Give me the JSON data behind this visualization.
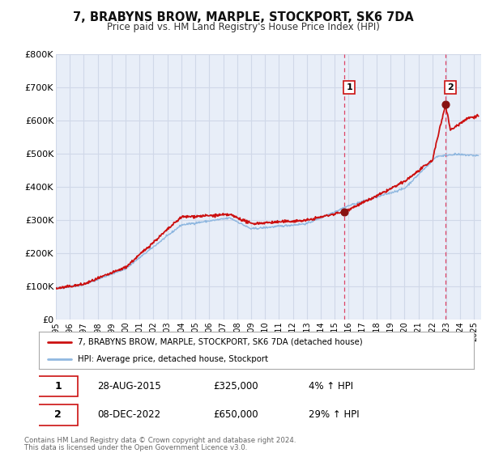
{
  "title": "7, BRABYNS BROW, MARPLE, STOCKPORT, SK6 7DA",
  "subtitle": "Price paid vs. HM Land Registry's House Price Index (HPI)",
  "ylim": [
    0,
    800000
  ],
  "yticks": [
    0,
    100000,
    200000,
    300000,
    400000,
    500000,
    600000,
    700000,
    800000
  ],
  "ytick_labels": [
    "£0",
    "£100K",
    "£200K",
    "£300K",
    "£400K",
    "£500K",
    "£600K",
    "£700K",
    "£800K"
  ],
  "xlim_start": 1995.0,
  "xlim_end": 2025.5,
  "background_color": "#ffffff",
  "plot_bg_color": "#e8eef8",
  "grid_color": "#d0d8e8",
  "sale1_x": 2015.66,
  "sale1_y": 325000,
  "sale2_x": 2022.94,
  "sale2_y": 650000,
  "hpi_line_color": "#90b8e0",
  "price_line_color": "#cc1111",
  "sale_dot_color": "#881111",
  "vline_color": "#dd4466",
  "legend_house_label": "7, BRABYNS BROW, MARPLE, STOCKPORT, SK6 7DA (detached house)",
  "legend_hpi_label": "HPI: Average price, detached house, Stockport",
  "annotation1_num": "1",
  "annotation1_date": "28-AUG-2015",
  "annotation1_price": "£325,000",
  "annotation1_hpi": "4% ↑ HPI",
  "annotation2_num": "2",
  "annotation2_date": "08-DEC-2022",
  "annotation2_price": "£650,000",
  "annotation2_hpi": "29% ↑ HPI",
  "footnote1": "Contains HM Land Registry data © Crown copyright and database right 2024.",
  "footnote2": "This data is licensed under the Open Government Licence v3.0."
}
